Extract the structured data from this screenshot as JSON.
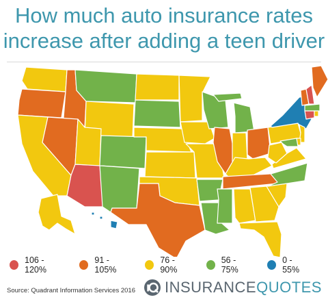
{
  "title": {
    "line1": "How much auto insurance rates",
    "line2": "increase after adding a teen driver"
  },
  "colors": {
    "range_106_120": "#d9534f",
    "range_91_105": "#e16b20",
    "range_76_90": "#f2c80f",
    "range_56_75": "#72b24a",
    "range_0_55": "#1f7fb3",
    "title": "#3e97ad"
  },
  "legend": [
    {
      "label": "106 - 120%",
      "color": "#d9534f"
    },
    {
      "label": "91 - 105%",
      "color": "#e16b20"
    },
    {
      "label": "76 - 90%",
      "color": "#f2c80f"
    },
    {
      "label": "56 - 75%",
      "color": "#72b24a"
    },
    {
      "label": "0 - 55%",
      "color": "#1f7fb3"
    }
  ],
  "source": "Source: Quadrant Information Services 2016",
  "brand": {
    "part1": "INSURANCE",
    "part2": "QUOTES",
    "icon": "iq-logo-icon"
  },
  "states": {
    "WA": "76-90",
    "OR": "91-105",
    "CA": "76-90",
    "ID": "91-105",
    "NV": "91-105",
    "AZ": "106-120",
    "MT": "56-75",
    "WY": "76-90",
    "UT": "76-90",
    "CO": "56-75",
    "NM": "56-75",
    "ND": "76-90",
    "SD": "56-75",
    "NE": "76-90",
    "KS": "76-90",
    "OK": "76-90",
    "TX": "91-105",
    "MN": "76-90",
    "IA": "76-90",
    "MO": "76-90",
    "AR": "56-75",
    "LA": "56-75",
    "WI": "56-75",
    "IL": "91-105",
    "MI": "56-75",
    "IN": "76-90",
    "OH": "91-105",
    "KY": "76-90",
    "TN": "91-105",
    "MS": "56-75",
    "AL": "76-90",
    "GA": "76-90",
    "FL": "76-90",
    "SC": "76-90",
    "NC": "56-75",
    "VA": "76-90",
    "WV": "76-90",
    "PA": "76-90",
    "NY": "0-55",
    "VT": "91-105",
    "NH": "106-120",
    "ME": "91-105",
    "MA": "56-75",
    "CT": "106-120",
    "RI": "76-90",
    "NJ": "76-90",
    "DE": "76-90",
    "MD": "56-75",
    "AK": "76-90",
    "HI": "0-55"
  }
}
